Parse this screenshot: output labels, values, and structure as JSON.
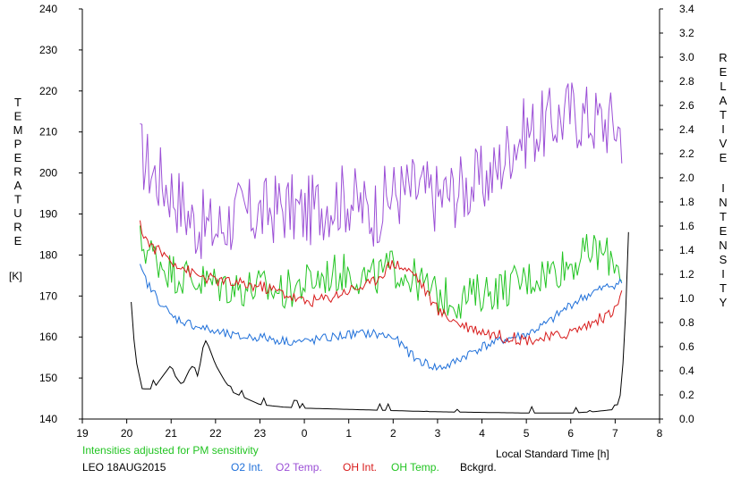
{
  "chart_data": {
    "type": "line",
    "left_axis": {
      "label_letters": [
        "T",
        "E",
        "M",
        "P",
        "E",
        "R",
        "A",
        "T",
        "U",
        "R",
        "E"
      ],
      "unit": "[K]",
      "range": [
        140,
        240
      ],
      "ticks": [
        "140",
        "150",
        "160",
        "170",
        "180",
        "190",
        "200",
        "210",
        "220",
        "230",
        "240"
      ]
    },
    "right_axis": {
      "label_word1": [
        "R",
        "E",
        "L",
        "A",
        "T",
        "I",
        "V",
        "E"
      ],
      "label_word2": [
        "I",
        "N",
        "T",
        "E",
        "N",
        "S",
        "I",
        "T",
        "Y"
      ],
      "range": [
        0,
        3.4
      ],
      "ticks": [
        "0.0",
        "0.2",
        "0.4",
        "0.6",
        "0.8",
        "1.0",
        "1.2",
        "1.4",
        "1.6",
        "1.8",
        "2.0",
        "2.2",
        "2.4",
        "2.6",
        "2.8",
        "3.0",
        "3.2",
        "3.4"
      ]
    },
    "x_axis": {
      "label": "Local Standard Time [h]",
      "range": [
        19,
        32
      ],
      "ticks": [
        "19",
        "20",
        "21",
        "22",
        "23",
        "0",
        "1",
        "2",
        "3",
        "4",
        "5",
        "6",
        "7",
        "8"
      ]
    },
    "note": "Intensities adjusted for PM sensitivity",
    "station": "LEO 18AUG2015",
    "legend": [
      {
        "label": "O2 Int.",
        "color": "#1e6fd9"
      },
      {
        "label": "O2 Temp.",
        "color": "#9b4fd6"
      },
      {
        "label": "OH Int.",
        "color": "#d81b1b"
      },
      {
        "label": "OH Temp.",
        "color": "#22c422"
      },
      {
        "label": "Bckgrd.",
        "color": "#000000"
      }
    ],
    "series": [
      {
        "name": "O2 Temp.",
        "axis": "left",
        "color": "#9b4fd6",
        "x": [
          20.3,
          20.6,
          21.0,
          21.5,
          22.0,
          22.5,
          23.0,
          23.5,
          24.0,
          24.5,
          25.0,
          25.5,
          26.0,
          26.5,
          27.0,
          27.5,
          28.0,
          28.3,
          28.7,
          29.0,
          29.5,
          30.0,
          30.5,
          31.0,
          31.15
        ],
        "y": [
          205,
          200,
          196,
          188,
          186,
          190,
          190,
          192,
          190,
          193,
          194,
          190,
          195,
          196,
          194,
          196,
          198,
          200,
          208,
          210,
          212,
          215,
          213,
          212,
          210
        ],
        "amp": 9
      },
      {
        "name": "OH Temp.",
        "axis": "left",
        "color": "#22c422",
        "x": [
          20.3,
          20.6,
          21.0,
          21.5,
          22.0,
          22.5,
          23.0,
          23.5,
          24.0,
          24.5,
          25.0,
          25.5,
          26.0,
          26.5,
          27.0,
          27.5,
          28.0,
          28.5,
          29.0,
          29.5,
          30.0,
          30.5,
          31.0,
          31.15
        ],
        "y": [
          183,
          180,
          176,
          174,
          173,
          172,
          172,
          171,
          173,
          175,
          176,
          174,
          177,
          174,
          170,
          169,
          171,
          172,
          174,
          176,
          178,
          181,
          179,
          176
        ],
        "amp": 5
      },
      {
        "name": "O2 Int.",
        "axis": "right",
        "color": "#1e6fd9",
        "x": [
          20.3,
          20.5,
          21.0,
          21.5,
          22.0,
          22.5,
          23.0,
          23.5,
          24.0,
          24.5,
          25.0,
          25.5,
          26.0,
          26.5,
          27.0,
          27.3,
          27.5,
          28.0,
          28.5,
          29.0,
          29.5,
          30.0,
          30.5,
          31.0,
          31.15
        ],
        "y": [
          1.25,
          1.1,
          0.85,
          0.78,
          0.72,
          0.68,
          0.68,
          0.65,
          0.64,
          0.67,
          0.7,
          0.71,
          0.68,
          0.5,
          0.42,
          0.45,
          0.5,
          0.6,
          0.66,
          0.7,
          0.8,
          0.95,
          1.05,
          1.12,
          1.13
        ],
        "amp": 0.04
      },
      {
        "name": "OH Int.",
        "axis": "right",
        "color": "#d81b1b",
        "x": [
          20.3,
          20.5,
          21.0,
          21.5,
          22.0,
          22.5,
          23.0,
          23.5,
          24.0,
          24.5,
          25.0,
          25.5,
          26.0,
          26.5,
          27.0,
          27.5,
          28.0,
          28.5,
          29.0,
          29.5,
          30.0,
          30.5,
          31.0,
          31.15
        ],
        "y": [
          1.6,
          1.45,
          1.32,
          1.2,
          1.15,
          1.12,
          1.1,
          1.05,
          0.97,
          1.0,
          1.07,
          1.12,
          1.3,
          1.2,
          0.9,
          0.79,
          0.73,
          0.68,
          0.66,
          0.67,
          0.72,
          0.8,
          0.9,
          1.05
        ],
        "amp": 0.05
      },
      {
        "name": "Bckgrd.",
        "axis": "right",
        "color": "#000000",
        "x": [
          20.1,
          20.2,
          20.35,
          20.6,
          20.8,
          21.0,
          21.1,
          21.25,
          21.4,
          21.5,
          21.6,
          21.7,
          21.75,
          21.85,
          22.0,
          22.2,
          22.4,
          23.0,
          23.5,
          24.0,
          25.0,
          26.0,
          27.0,
          28.0,
          29.0,
          30.0,
          30.5,
          31.0,
          31.1,
          31.2,
          31.3
        ],
        "y": [
          0.92,
          0.5,
          0.25,
          0.25,
          0.35,
          0.45,
          0.35,
          0.28,
          0.4,
          0.45,
          0.35,
          0.55,
          0.67,
          0.6,
          0.45,
          0.32,
          0.22,
          0.12,
          0.1,
          0.09,
          0.08,
          0.07,
          0.06,
          0.055,
          0.05,
          0.05,
          0.06,
          0.08,
          0.15,
          0.5,
          1.55
        ],
        "amp": 0
      }
    ]
  }
}
